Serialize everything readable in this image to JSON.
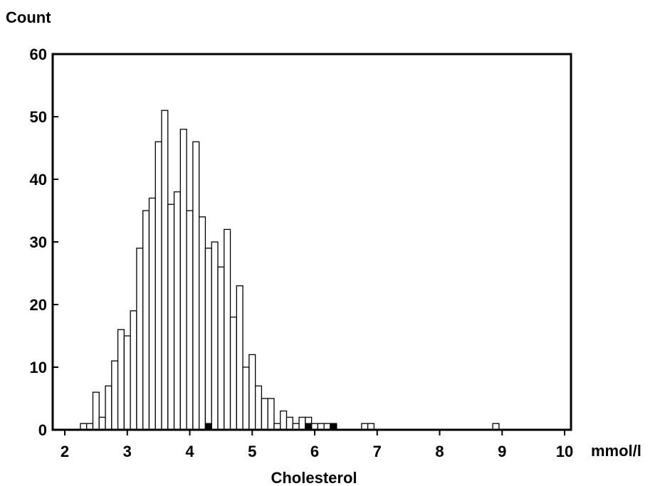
{
  "chart_data": {
    "type": "bar",
    "ylabel": "Count",
    "xlabel": "Cholesterol",
    "x_unit": "mmol/l",
    "xlim": [
      2,
      10
    ],
    "ylim": [
      0,
      60
    ],
    "x_ticks": [
      2,
      3,
      4,
      5,
      6,
      7,
      8,
      9,
      10
    ],
    "y_ticks": [
      0,
      10,
      20,
      30,
      40,
      50,
      60
    ],
    "bin_width": 0.1,
    "grid": false,
    "colors": {
      "open_bar_fill": "#ffffff",
      "filled_bar_fill": "#000000",
      "stroke": "#000000"
    },
    "series": [
      {
        "bins": [
          {
            "x": 2.3,
            "y": 1
          },
          {
            "x": 2.4,
            "y": 1
          },
          {
            "x": 2.5,
            "y": 6
          },
          {
            "x": 2.6,
            "y": 2
          },
          {
            "x": 2.7,
            "y": 7
          },
          {
            "x": 2.8,
            "y": 11
          },
          {
            "x": 2.9,
            "y": 16
          },
          {
            "x": 3.0,
            "y": 15
          },
          {
            "x": 3.1,
            "y": 19
          },
          {
            "x": 3.2,
            "y": 29
          },
          {
            "x": 3.3,
            "y": 35
          },
          {
            "x": 3.4,
            "y": 37
          },
          {
            "x": 3.5,
            "y": 46
          },
          {
            "x": 3.6,
            "y": 51
          },
          {
            "x": 3.7,
            "y": 36
          },
          {
            "x": 3.8,
            "y": 38
          },
          {
            "x": 3.9,
            "y": 48
          },
          {
            "x": 4.0,
            "y": 35
          },
          {
            "x": 4.1,
            "y": 46
          },
          {
            "x": 4.2,
            "y": 34
          },
          {
            "x": 4.3,
            "y": 29
          },
          {
            "x": 4.4,
            "y": 30
          },
          {
            "x": 4.5,
            "y": 26
          },
          {
            "x": 4.6,
            "y": 32
          },
          {
            "x": 4.7,
            "y": 18
          },
          {
            "x": 4.8,
            "y": 23
          },
          {
            "x": 4.9,
            "y": 10
          },
          {
            "x": 5.0,
            "y": 12
          },
          {
            "x": 5.1,
            "y": 7
          },
          {
            "x": 5.2,
            "y": 5
          },
          {
            "x": 5.3,
            "y": 5
          },
          {
            "x": 5.4,
            "y": 1
          },
          {
            "x": 5.5,
            "y": 3
          },
          {
            "x": 5.6,
            "y": 2
          },
          {
            "x": 5.7,
            "y": 1
          },
          {
            "x": 5.8,
            "y": 2
          },
          {
            "x": 5.9,
            "y": 2
          },
          {
            "x": 6.0,
            "y": 1
          },
          {
            "x": 6.1,
            "y": 1
          },
          {
            "x": 6.2,
            "y": 1
          },
          {
            "x": 6.3,
            "y": 1
          },
          {
            "x": 6.8,
            "y": 1
          },
          {
            "x": 6.9,
            "y": 1
          },
          {
            "x": 8.9,
            "y": 1
          }
        ]
      },
      {
        "style": "filled",
        "bins": [
          {
            "x": 4.3,
            "y": 1
          },
          {
            "x": 5.9,
            "y": 1
          },
          {
            "x": 6.3,
            "y": 1
          }
        ]
      }
    ]
  }
}
